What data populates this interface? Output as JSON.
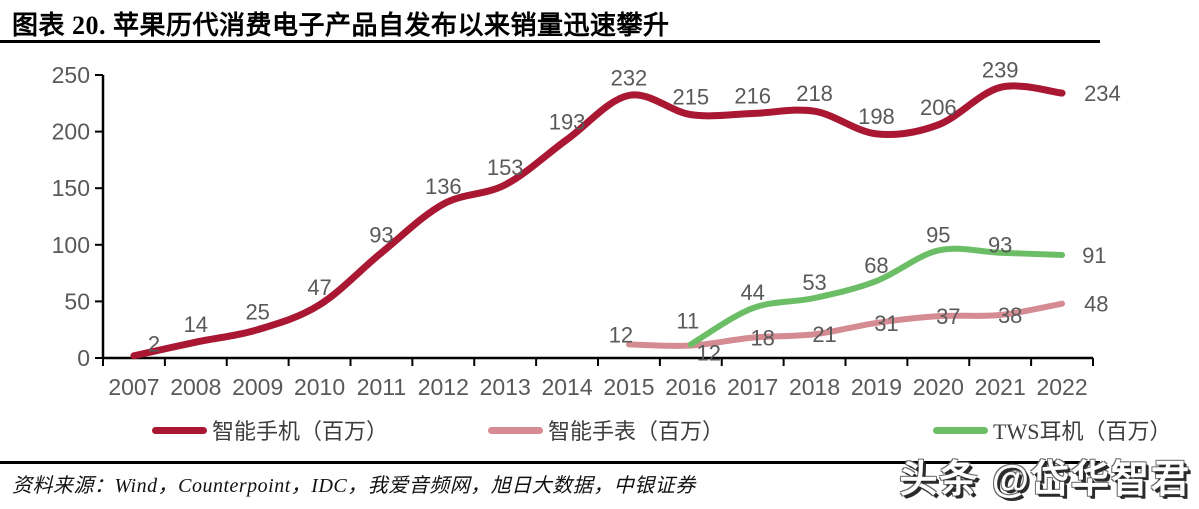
{
  "header": {
    "title": "图表 20. 苹果历代消费电子产品自发布以来销量迅速攀升"
  },
  "chart_data": {
    "type": "line",
    "smooth": true,
    "grid": false,
    "legend_position": "bottom",
    "title": "",
    "xlabel": "",
    "ylabel": "",
    "ylim": [
      0,
      250
    ],
    "yticks": [
      0,
      50,
      100,
      150,
      200,
      250
    ],
    "text_color": "#595959",
    "axis_color": "#000000",
    "categories": [
      "2007",
      "2008",
      "2009",
      "2010",
      "2011",
      "2012",
      "2013",
      "2014",
      "2015",
      "2016",
      "2017",
      "2018",
      "2019",
      "2020",
      "2021",
      "2022"
    ],
    "series": [
      {
        "name": "智能手机（百万）",
        "color": "#A91732",
        "start_index": 0,
        "values": [
          2,
          14,
          25,
          47,
          93,
          136,
          153,
          193,
          232,
          215,
          216,
          218,
          198,
          206,
          239,
          234
        ]
      },
      {
        "name": "智能手表（百万）",
        "color": "#D58B92",
        "start_index": 8,
        "values": [
          12,
          11,
          18,
          21,
          31,
          37,
          38,
          48
        ]
      },
      {
        "name": "TWS耳机（百万）",
        "color": "#6CBE66",
        "start_index": 9,
        "values": [
          12,
          44,
          53,
          68,
          95,
          93,
          91
        ]
      }
    ]
  },
  "footer": {
    "source": "资料来源：Wind，Counterpoint，IDC，我爱音频网，旭日大数据，中银证券",
    "watermark": "头条 @岱华智君"
  }
}
